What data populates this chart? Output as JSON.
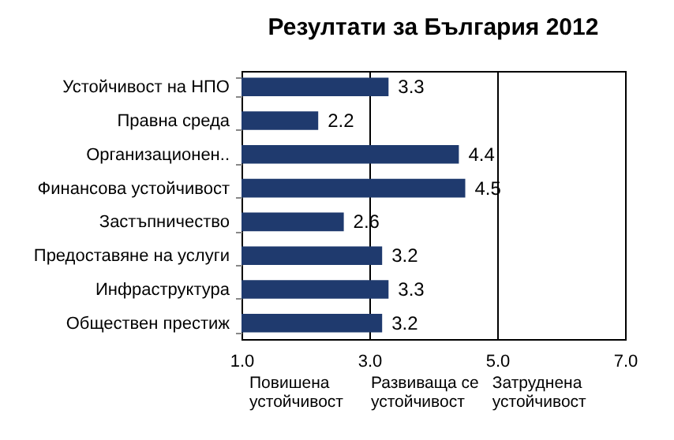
{
  "chart_data": {
    "type": "bar",
    "orientation": "horizontal",
    "title": "Резултати за България 2012",
    "categories": [
      "Устойчивост на НПО",
      "Правна среда",
      "Организационен..",
      "Финансова устойчивост",
      "Застъпничество",
      "Предоставяне на услуги",
      "Инфраструктура",
      "Обществен престиж"
    ],
    "values": [
      3.3,
      2.2,
      4.4,
      4.5,
      2.6,
      3.2,
      3.3,
      3.2
    ],
    "color": "#1f3a6e",
    "xlim": [
      1,
      7
    ],
    "xticks": [
      {
        "value": 1,
        "label": "1.0"
      },
      {
        "value": 3,
        "label": "3.0"
      },
      {
        "value": 5,
        "label": "5.0"
      },
      {
        "value": 7,
        "label": "7.0"
      }
    ],
    "grid": "x",
    "data_labels": true,
    "annotations": [
      "Повишена устойчивост",
      "Развиваща се устойчивост",
      "Затруднена устойчивост"
    ]
  }
}
